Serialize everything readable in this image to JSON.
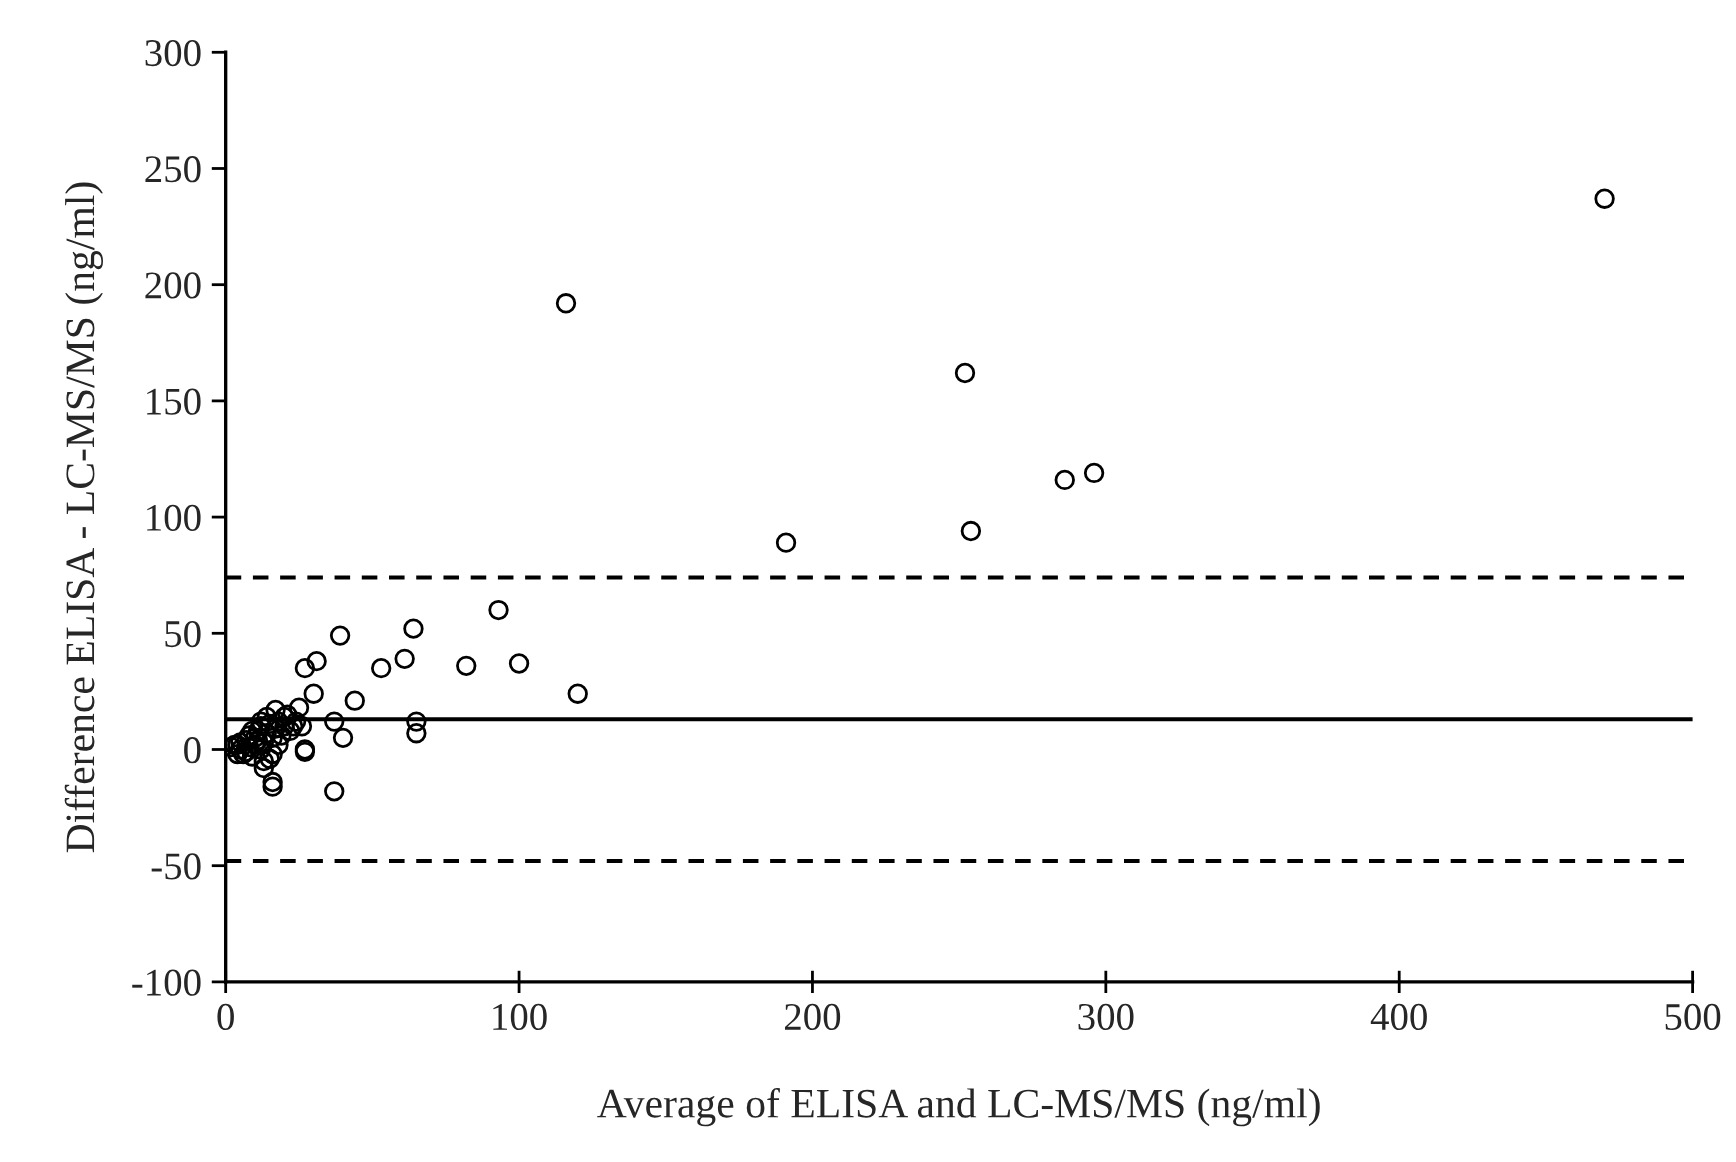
{
  "chart_data": {
    "type": "scatter",
    "xlabel": "Average of ELISA and LC-MS/MS (ng/ml)",
    "ylabel": "Difference ELISA - LC-MS/MS (ng/ml)",
    "xlim": [
      0,
      500
    ],
    "xticks": [
      0,
      100,
      200,
      300,
      400,
      500
    ],
    "ylim": [
      -100,
      300
    ],
    "yticks": [
      -100,
      -50,
      0,
      50,
      100,
      150,
      200,
      250,
      300
    ],
    "grid": false,
    "marker": "circle",
    "ref_lines": [
      {
        "axis": "y",
        "value": 13,
        "color": "#000000",
        "line_style": "solid"
      },
      {
        "axis": "y",
        "value": 74,
        "color": "#000000",
        "line_style": "dashed"
      },
      {
        "axis": "y",
        "value": -48,
        "color": "#000000",
        "line_style": "dashed"
      }
    ],
    "series": [
      {
        "color": "#000000",
        "x": [
          470,
          252,
          254,
          286,
          296,
          191,
          116,
          93,
          64,
          39,
          120,
          100,
          82,
          61,
          53,
          31,
          27,
          30,
          44,
          25,
          37,
          65,
          65,
          40,
          27,
          27,
          37,
          16,
          16,
          13,
          16,
          23,
          20,
          17,
          14,
          12,
          2,
          4,
          5,
          5,
          6,
          7,
          8,
          8,
          9,
          10,
          10,
          11,
          12,
          12,
          13,
          14,
          15,
          15,
          16,
          17,
          18,
          18,
          19,
          20,
          21,
          22,
          24,
          26,
          3,
          4,
          7,
          9,
          11,
          13
        ],
        "values": [
          237,
          162,
          94,
          116,
          119,
          89,
          192,
          60,
          52,
          49,
          24,
          37,
          36,
          39,
          35,
          38,
          35,
          24,
          21,
          18,
          12,
          12,
          7,
          5,
          0,
          -1,
          -18,
          -14,
          -16,
          -8,
          -2,
          10,
          14,
          17,
          14,
          12,
          1,
          2,
          0,
          3,
          -2,
          4,
          1,
          6,
          -3,
          5,
          2,
          8,
          0,
          10,
          3,
          7,
          -4,
          11,
          5,
          9,
          2,
          12,
          6,
          10,
          15,
          8,
          12,
          10,
          2,
          -2,
          -1,
          8,
          4,
          -5
        ]
      }
    ]
  }
}
